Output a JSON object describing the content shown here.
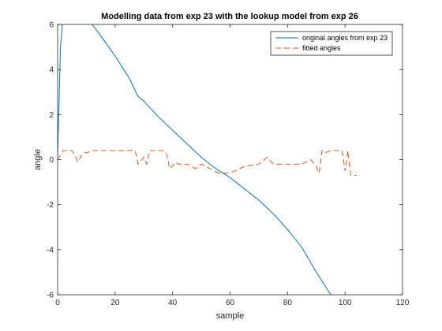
{
  "chart_data": {
    "type": "line",
    "title": "Modelling data from exp 23 with the lookup model from exp 26",
    "xlabel": "sample",
    "ylabel": "angle",
    "xlim": [
      0,
      120
    ],
    "ylim": [
      -6,
      6
    ],
    "xticks": [
      0,
      20,
      40,
      60,
      80,
      100,
      120
    ],
    "yticks": [
      -6,
      -4,
      -2,
      0,
      2,
      4,
      6
    ],
    "grid": false,
    "legend_position": "top-right",
    "series": [
      {
        "name": "original angles from exp 23",
        "color": "#0072BD",
        "style": "solid",
        "x": [
          0,
          0.5,
          1,
          2,
          12,
          15,
          20,
          25,
          28,
          30,
          35,
          40,
          45,
          50,
          55,
          60,
          65,
          70,
          75,
          80,
          85,
          90,
          95
        ],
        "y": [
          0.2,
          2.5,
          5.0,
          6.5,
          6.0,
          5.5,
          4.6,
          3.6,
          2.8,
          2.6,
          1.9,
          1.3,
          0.7,
          0.1,
          -0.4,
          -0.8,
          -1.3,
          -1.8,
          -2.4,
          -3.1,
          -3.9,
          -5.0,
          -6.0
        ]
      },
      {
        "name": "fitted angles",
        "color": "#D95319",
        "style": "dashed",
        "x": [
          0,
          2,
          5,
          6,
          7,
          9,
          10,
          12,
          20,
          27,
          28,
          30,
          31,
          32,
          37,
          38,
          39,
          40,
          41,
          42,
          45,
          48,
          50,
          53,
          56,
          58,
          60,
          65,
          70,
          73,
          75,
          80,
          85,
          88,
          90,
          91,
          92,
          93,
          95,
          99,
          100,
          101,
          102,
          104
        ],
        "y": [
          0,
          0.4,
          0.4,
          0.2,
          -0.1,
          0.3,
          0.3,
          0.4,
          0.4,
          0.4,
          -0.2,
          0.1,
          -0.2,
          0.4,
          0.4,
          0.2,
          -0.4,
          -0.3,
          -0.1,
          -0.2,
          -0.2,
          -0.4,
          -0.2,
          -0.4,
          -0.6,
          -0.6,
          -0.6,
          -0.3,
          -0.2,
          0.1,
          -0.2,
          -0.2,
          -0.2,
          0.0,
          -0.3,
          -0.6,
          0.4,
          0.3,
          0.4,
          0.4,
          -0.5,
          0.4,
          -0.7,
          -0.7
        ]
      }
    ]
  }
}
